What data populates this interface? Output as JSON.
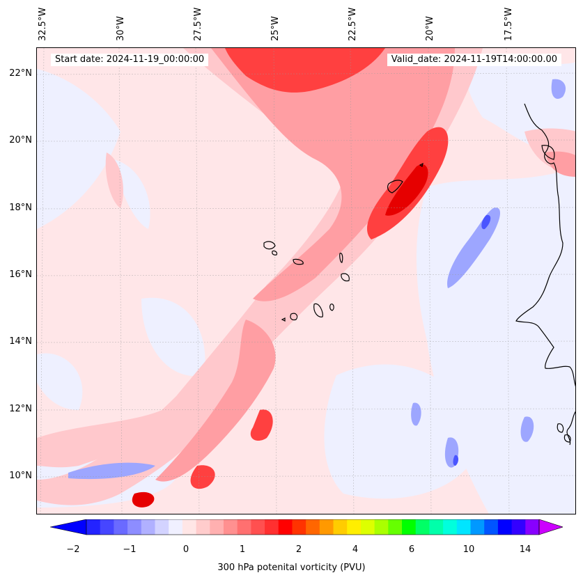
{
  "map": {
    "lon_labels": [
      "32.5°W",
      "30°W",
      "27.5°W",
      "25°W",
      "22.5°W",
      "20°W",
      "17.5°W"
    ],
    "lat_labels": [
      "22°N",
      "20°N",
      "18°N",
      "16°N",
      "14°N",
      "12°N",
      "10°N"
    ],
    "start_date": "Start date: 2024-11-19_00:00:00",
    "valid_date": "Valid_date: 2024-11-19T14:00:00.00",
    "colors": {
      "background_pv": "#ffe6e8",
      "light_red": "#ffc8cc",
      "medium_red": "#ff8c90",
      "strong_red": "#ff2a2a",
      "dark_red": "#e60000",
      "light_blue": "#e8ebff",
      "medium_blue": "#9da6ff",
      "strong_blue": "#4a55ff",
      "coastline": "#000000"
    }
  },
  "colorbar": {
    "ticks": [
      "−2",
      "−1",
      "0",
      "1",
      "2",
      "4",
      "6",
      "10",
      "14"
    ],
    "label": "300 hPa potenital vorticity (PVU)",
    "colors": [
      "#0000ff",
      "#2323ff",
      "#4646ff",
      "#6a6aff",
      "#8d8dff",
      "#b0b0ff",
      "#d3d3ff",
      "#f0f0ff",
      "#ffe6e6",
      "#ffcccc",
      "#ffb0b0",
      "#ff9090",
      "#ff7070",
      "#ff5050",
      "#ff3030",
      "#ff0000",
      "#ff3300",
      "#ff6600",
      "#ff9900",
      "#ffcc00",
      "#ffee00",
      "#ddff00",
      "#aaff00",
      "#66ff00",
      "#00ff00",
      "#00ff66",
      "#00ffaa",
      "#00ffdd",
      "#00e5ff",
      "#0099ff",
      "#0055ff",
      "#0000ff",
      "#3300ff",
      "#8800ff",
      "#cc00ff"
    ]
  }
}
